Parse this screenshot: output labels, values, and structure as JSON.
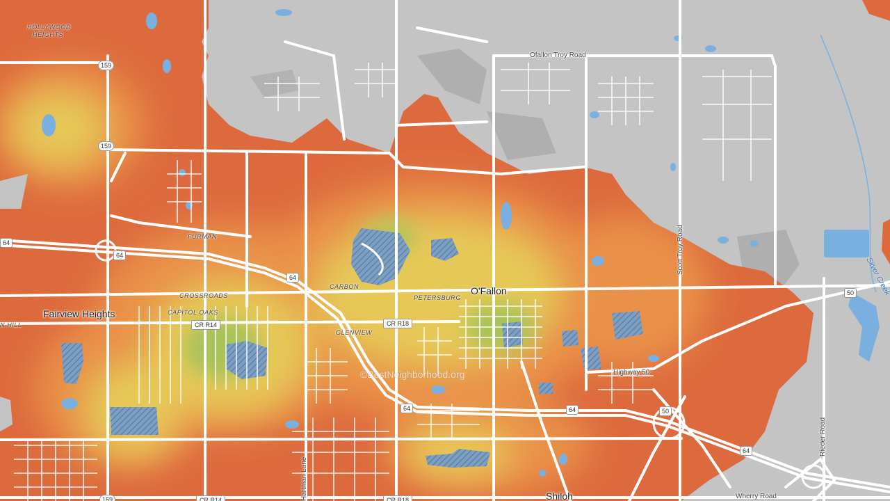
{
  "map": {
    "watermark": "©BestNeighborhood.org",
    "colors": {
      "background": "#c4c4c4",
      "heat_red": "#dd6a3d",
      "heat_orange": "#e9914a",
      "heat_yellow": "#e6c857",
      "heat_green": "#a9c25a",
      "water": "#7ab0e0",
      "road": "#ffffff"
    },
    "places": {
      "ofallon": "O'Fallon",
      "fairview_heights": "Fairview Heights",
      "shiloh": "Shiloh",
      "hollywood_heights_1": "HOLLYWOOD",
      "hollywood_heights_2": "HEIGHTS",
      "n_hill": "N HILL",
      "furman": "FURMAN",
      "crossroads": "CROSSROADS",
      "capitol_oaks": "CAPITOL OAKS",
      "carbon": "CARBON",
      "petersburg": "PETERSBURG",
      "glenview": "GLENVIEW"
    },
    "roads": {
      "ofallon_troy": "Ofallon Troy Road",
      "scott_troy": "Scott Troy Road",
      "highway_50": "Highway 50",
      "rieder": "Rieder Road",
      "hartman": "Hartman Lane",
      "wherry": "Wherry Road"
    },
    "water_labels": {
      "silver_creek": "Silver Creek"
    },
    "shields": {
      "s159a": "159",
      "s159b": "159",
      "s159c": "159",
      "s64w": "64",
      "s64a": "64",
      "s64b": "64",
      "s64c": "64",
      "s64d": "64",
      "s64e": "64",
      "s50a": "50",
      "s50b": "50",
      "crr14a": "CR R14",
      "crr14b": "CR R14",
      "crr18a": "CR R18",
      "crr18b": "CR R18"
    }
  }
}
